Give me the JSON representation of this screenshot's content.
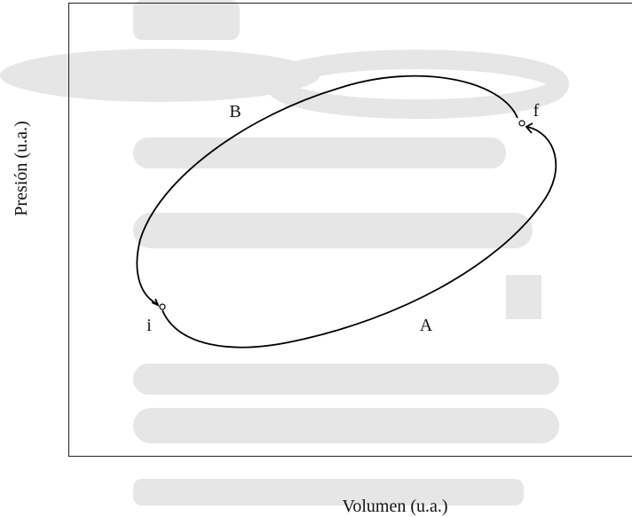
{
  "axes": {
    "y_label": "Presión (u.a.)",
    "x_label": "Volumen (u.a.)"
  },
  "labels": {
    "upper_path": "B",
    "lower_path": "A",
    "initial_state": "i",
    "final_state": "f"
  }
}
